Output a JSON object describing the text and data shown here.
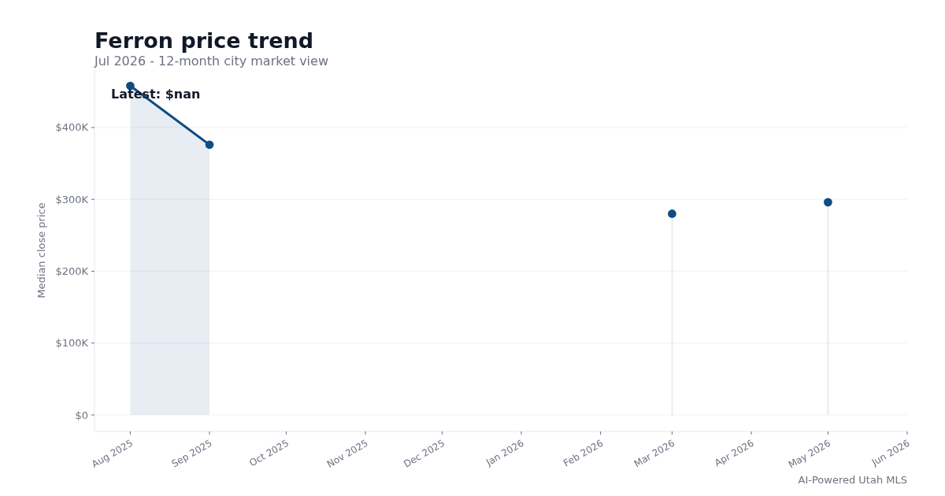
{
  "chart_data": {
    "type": "area",
    "title": "Ferron price trend",
    "subtitle": "Jul 2026 - 12-month city market view",
    "ylabel": "Median close price",
    "x": [
      "2025-08",
      "2025-09",
      "2025-10",
      "2025-11",
      "2025-12",
      "2026-01",
      "2026-02",
      "2026-03",
      "2026-04",
      "2026-05"
    ],
    "series": [
      {
        "color": "#0f4c81",
        "values": [
          458000,
          376000,
          null,
          null,
          null,
          null,
          null,
          280000,
          null,
          296000
        ]
      }
    ],
    "xlim": [
      "2025-07-18",
      "2026-06-01"
    ],
    "xticks": [
      {
        "value": "2025-08",
        "label": "Aug 2025"
      },
      {
        "value": "2025-09",
        "label": "Sep 2025"
      },
      {
        "value": "2025-10",
        "label": "Oct 2025"
      },
      {
        "value": "2025-11",
        "label": "Nov 2025"
      },
      {
        "value": "2025-12",
        "label": "Dec 2025"
      },
      {
        "value": "2026-01",
        "label": "Jan 2026"
      },
      {
        "value": "2026-02",
        "label": "Feb 2026"
      },
      {
        "value": "2026-03",
        "label": "Mar 2026"
      },
      {
        "value": "2026-04",
        "label": "Apr 2026"
      },
      {
        "value": "2026-05",
        "label": "May 2026"
      },
      {
        "value": "2026-06",
        "label": "Jun 2026"
      }
    ],
    "ylim": [
      -23000,
      481000
    ],
    "yticks": [
      {
        "value": 0,
        "label": "$0"
      },
      {
        "value": 100000,
        "label": "$100K"
      },
      {
        "value": 200000,
        "label": "$200K"
      },
      {
        "value": 300000,
        "label": "$300K"
      },
      {
        "value": 400000,
        "label": "$400K"
      }
    ],
    "grid": "y",
    "marker": "circle",
    "line_style": "solid",
    "annotations": [
      "Latest: $nan",
      "AI-Powered Utah MLS"
    ]
  }
}
